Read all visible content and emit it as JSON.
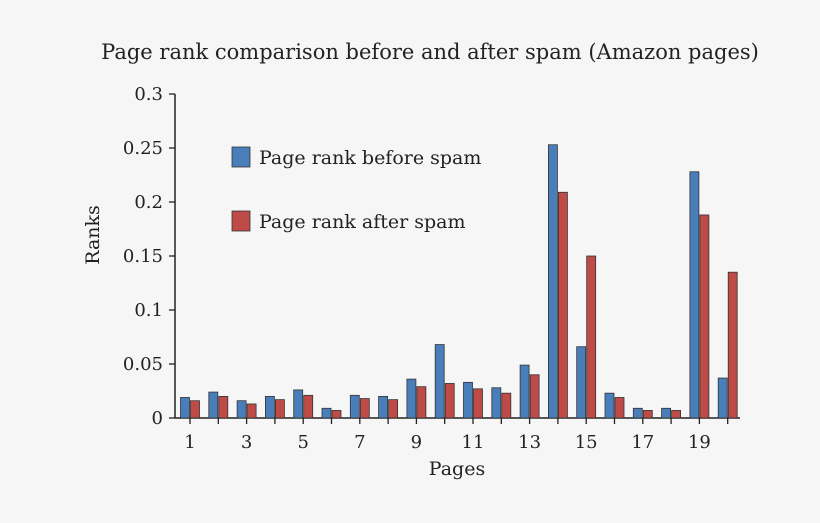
{
  "chart_data": {
    "type": "bar",
    "title": "Page rank comparison before and after spam (Amazon pages)",
    "xlabel": "Pages",
    "ylabel": "Ranks",
    "ylim": [
      0,
      0.3
    ],
    "yticks": [
      "0",
      "0.05",
      "0.1",
      "0.15",
      "0.2",
      "0.25",
      "0.3"
    ],
    "ytick_values": [
      0,
      0.05,
      0.1,
      0.15,
      0.2,
      0.25,
      0.3
    ],
    "categories": [
      "1",
      "2",
      "3",
      "4",
      "5",
      "6",
      "7",
      "8",
      "9",
      "10",
      "11",
      "12",
      "13",
      "14",
      "15",
      "16",
      "17",
      "18",
      "19",
      "20"
    ],
    "xtick_labels": [
      "1",
      "3",
      "5",
      "7",
      "9",
      "11",
      "13",
      "15",
      "17",
      "19"
    ],
    "legend_position": "upper-left",
    "grid": false,
    "series": [
      {
        "name": "Page rank before spam",
        "color": "#4a7ebb",
        "values": [
          0.019,
          0.024,
          0.016,
          0.02,
          0.026,
          0.009,
          0.021,
          0.02,
          0.036,
          0.068,
          0.033,
          0.028,
          0.049,
          0.253,
          0.066,
          0.023,
          0.009,
          0.009,
          0.228,
          0.037
        ]
      },
      {
        "name": "Page rank after spam",
        "color": "#be4b48",
        "values": [
          0.016,
          0.02,
          0.013,
          0.017,
          0.021,
          0.007,
          0.018,
          0.017,
          0.029,
          0.032,
          0.027,
          0.023,
          0.04,
          0.209,
          0.15,
          0.019,
          0.007,
          0.007,
          0.188,
          0.135
        ]
      }
    ]
  }
}
